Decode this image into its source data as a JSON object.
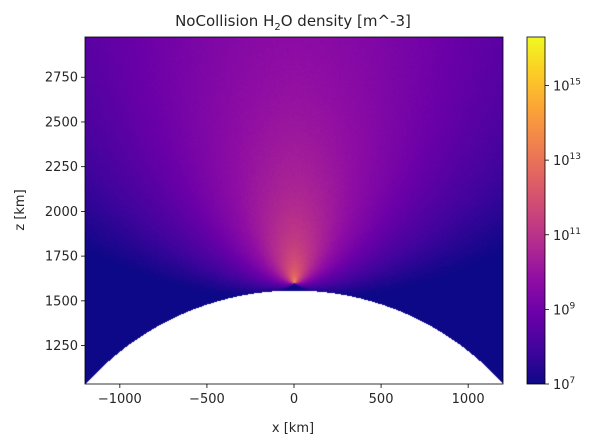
{
  "chart_data": {
    "type": "heatmap",
    "title": {
      "prefix": "NoCollision H",
      "subscript": "2",
      "suffix": "O density [m^-3]"
    },
    "xlabel": "x [km]",
    "ylabel": "z [km]",
    "xlim": [
      -1200,
      1200
    ],
    "ylim": [
      1035,
      2975
    ],
    "x_ticks": [
      -1000,
      -500,
      0,
      500,
      1000
    ],
    "x_tick_labels": [
      "−1000",
      "−500",
      "0",
      "500",
      "1000"
    ],
    "y_ticks": [
      1250,
      1500,
      1750,
      2000,
      2250,
      2500,
      2750
    ],
    "y_tick_labels": [
      "1250",
      "1500",
      "1750",
      "2000",
      "2250",
      "2500",
      "2750"
    ],
    "colorbar": {
      "scale": "log",
      "colormap": "plasma",
      "range_exponent": [
        7,
        16.3
      ],
      "ticks": [
        {
          "base": "10",
          "exp": "7",
          "value": 10000000.0
        },
        {
          "base": "10",
          "exp": "9",
          "value": 1000000000.0
        },
        {
          "base": "10",
          "exp": "11",
          "value": 100000000000.0
        },
        {
          "base": "10",
          "exp": "13",
          "value": 10000000000000.0
        },
        {
          "base": "10",
          "exp": "15",
          "value": 1000000000000000.0
        }
      ]
    },
    "body": {
      "shape": "circle",
      "center_x_km": 0,
      "surface_top_z_km": 1560
    },
    "source": {
      "x_km": 0,
      "z_km": 1600,
      "peak_log10_density": 14.4
    },
    "grid": false
  }
}
